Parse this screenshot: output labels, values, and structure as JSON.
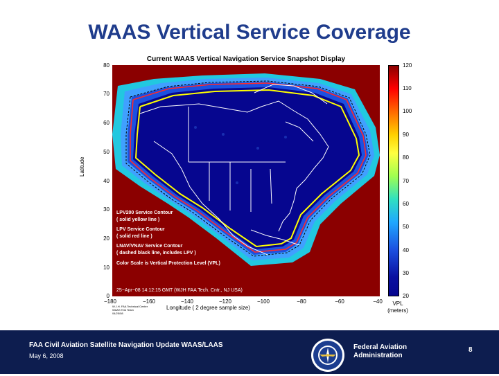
{
  "slide": {
    "title": "WAAS Vertical Service Coverage"
  },
  "map": {
    "title": "Current WAAS Vertical Navigation Service Snapshot Display",
    "ylabel": "Latitude",
    "xlabel": "Longitude   ( 2 degree sample size)",
    "xticks": [
      "−180",
      "−160",
      "−140",
      "−120",
      "−100",
      "−80",
      "−60",
      "−40"
    ],
    "yticks": [
      "80",
      "70",
      "60",
      "50",
      "40",
      "30",
      "20",
      "10",
      "0"
    ],
    "xlim": [
      -180,
      -40
    ],
    "ylim": [
      0,
      80
    ],
    "credit": [
      "W.J.H. FAA Technical Center",
      "WAAS Test Team",
      "04/25/08"
    ],
    "legend": {
      "lpv200": "LPV200 Service Contour",
      "lpv200_style": "( solid yellow line )",
      "lpv": "LPV Service Contour",
      "lpv_style": "( solid red line )",
      "lnav": "LNAV/VNAV Service Contour",
      "lnav_style": "( dashed black line, includes LPV )",
      "scale": "Color Scale is Vertical Protection Level (VPL)"
    },
    "timestamp": "25−Apr−08 14:12:15 GMT  (WJH FAA Tech. Cntr., NJ USA)",
    "colors": {
      "background": "#8b0000",
      "lpv200_line": "#ffff00",
      "lpv_line": "#ff2a2a",
      "coverage_core": "#06068f"
    }
  },
  "colorbar": {
    "ticks": [
      "120",
      "110",
      "100",
      "90",
      "80",
      "70",
      "60",
      "50",
      "40",
      "30",
      "20"
    ],
    "range": [
      20,
      120
    ],
    "label_line1": "VPL",
    "label_line2": "(meters)"
  },
  "footer": {
    "title": "FAA Civil Aviation Satellite Navigation Update WAAS/LAAS",
    "date": "May 6, 2008",
    "agency_line1": "Federal Aviation",
    "agency_line2": "Administration",
    "page_number": "8",
    "seal_text": "FEDERAL AVIATION ADMINISTRATION"
  }
}
